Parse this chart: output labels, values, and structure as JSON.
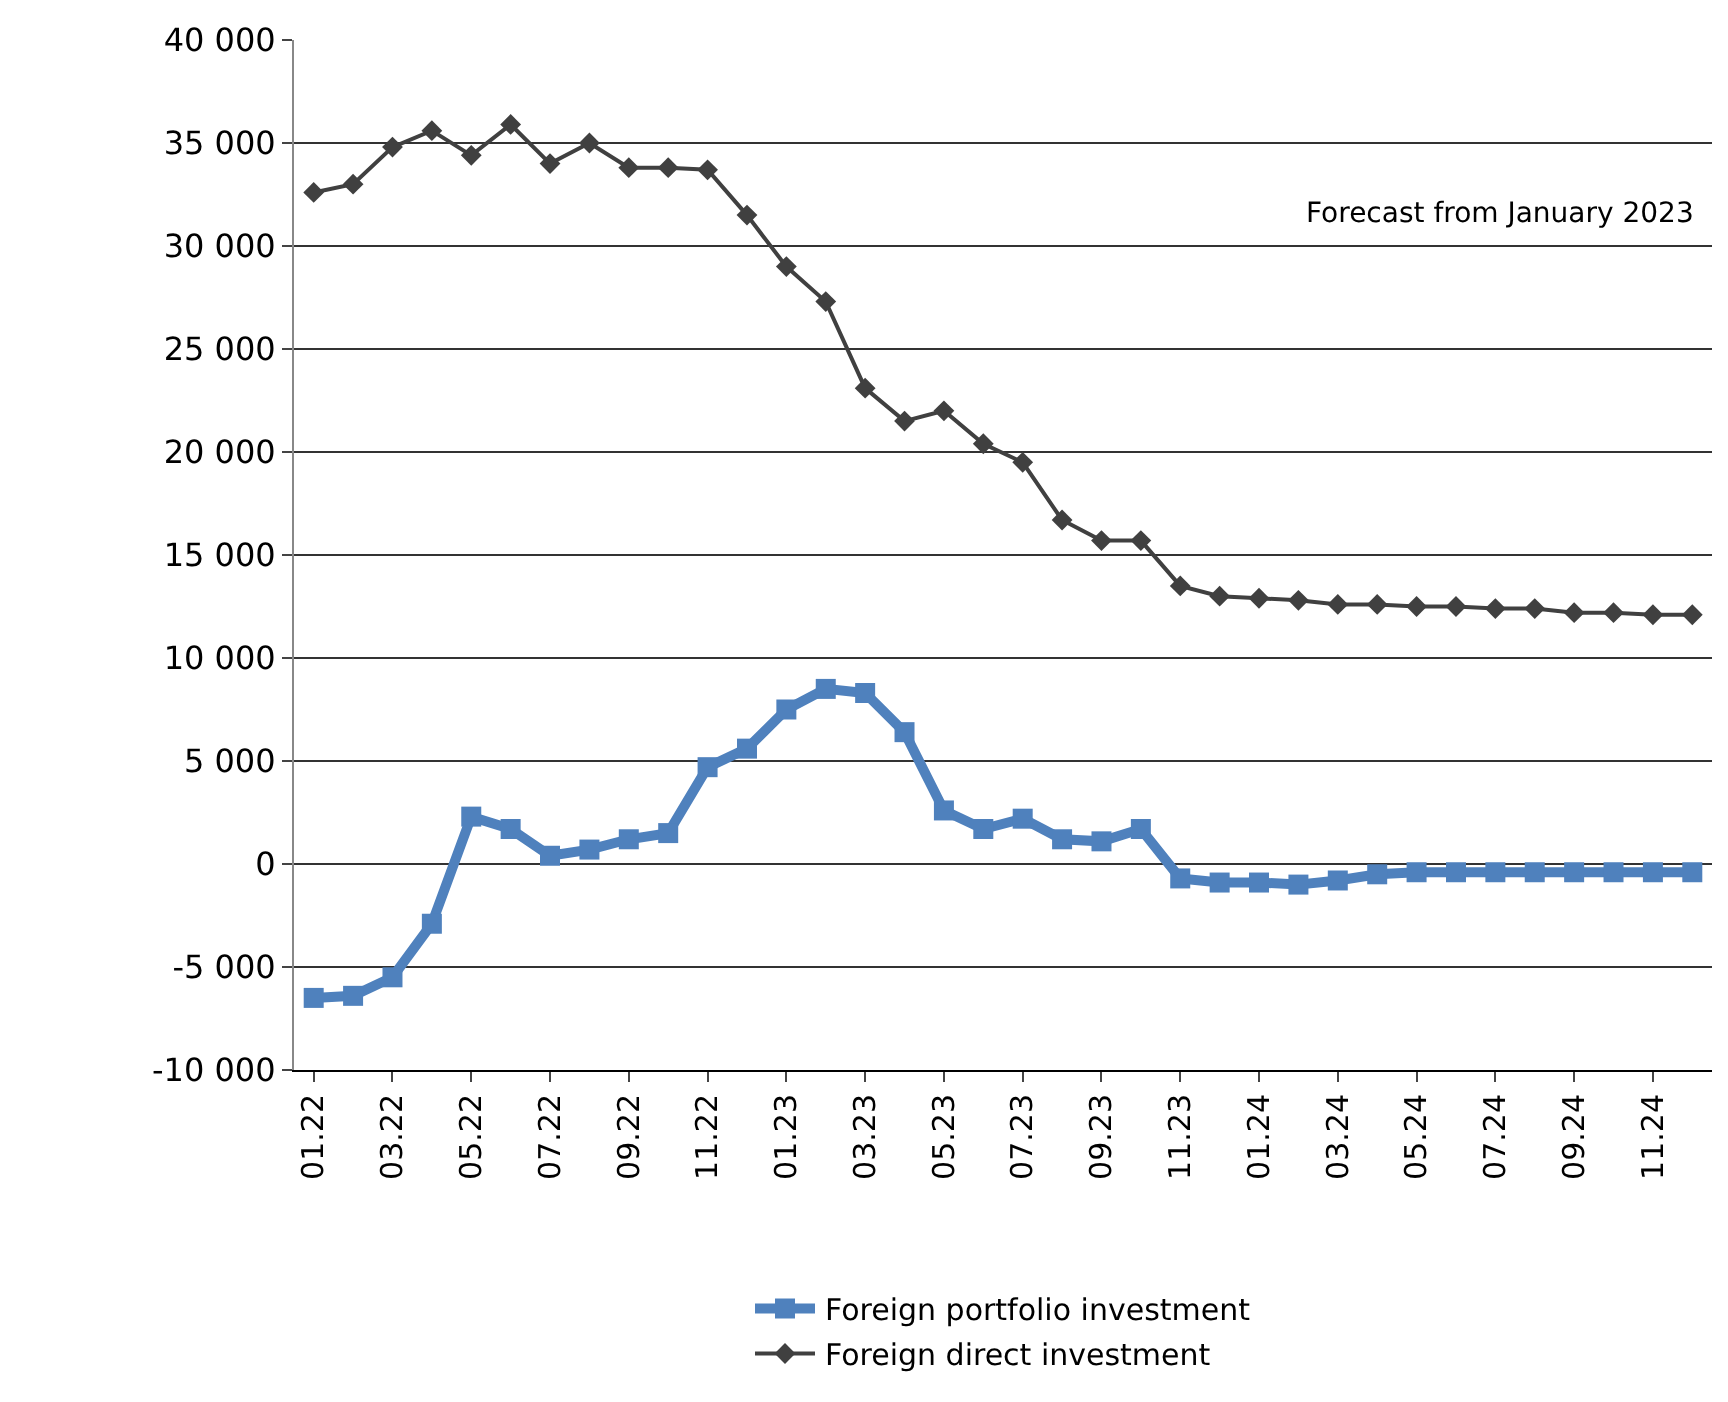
{
  "chart_data": {
    "type": "line",
    "categories": [
      "01.22",
      null,
      "03.22",
      null,
      "05.22",
      null,
      "07.22",
      null,
      "09.22",
      null,
      "11.22",
      null,
      "01.23",
      null,
      "03.23",
      null,
      "05.23",
      null,
      "07.23",
      null,
      "09.23",
      null,
      "11.23",
      null,
      "01.24",
      null,
      "03.24",
      null,
      "05.24",
      null,
      "07.24",
      null,
      "09.24",
      null,
      "11.24",
      null
    ],
    "series": [
      {
        "name": "Foreign portfolio investment",
        "color": "#4f81bd",
        "marker": "square",
        "values": [
          -6500,
          -6400,
          -5500,
          -2900,
          2300,
          1700,
          400,
          700,
          1200,
          1500,
          4700,
          5600,
          7500,
          8500,
          8300,
          6400,
          2600,
          1700,
          2200,
          1200,
          1100,
          1700,
          -700,
          -900,
          -900,
          -1000,
          -800,
          -500,
          -400,
          -400,
          -400,
          -400,
          -400,
          -400,
          -400,
          -400
        ]
      },
      {
        "name": "Foreign direct investment",
        "color": "#404040",
        "marker": "diamond",
        "values": [
          32600,
          33000,
          34800,
          35600,
          34400,
          35900,
          34000,
          35000,
          33800,
          33800,
          33700,
          31500,
          29000,
          27300,
          23100,
          21500,
          22000,
          20400,
          19500,
          16700,
          15700,
          15700,
          13500,
          13000,
          12900,
          12800,
          12600,
          12600,
          12500,
          12500,
          12400,
          12400,
          12200,
          12200,
          12100,
          12100
        ]
      }
    ],
    "ylim": [
      -10000,
      40000
    ],
    "yticks": [
      {
        "value": -10000,
        "label": "-10 000"
      },
      {
        "value": -5000,
        "label": "-5 000"
      },
      0,
      {
        "value": 5000,
        "label": "5 000"
      },
      {
        "value": 10000,
        "label": "10 000"
      },
      {
        "value": 15000,
        "label": "15 000"
      },
      {
        "value": 20000,
        "label": "20 000"
      },
      {
        "value": 25000,
        "label": "25 000"
      },
      {
        "value": 30000,
        "label": "30 000"
      },
      {
        "value": 35000,
        "label": "35 000"
      },
      {
        "value": 40000,
        "label": "40 000"
      }
    ],
    "annotations": [
      "Forecast from January 2023"
    ],
    "grid": "y",
    "legend": "bottom",
    "line_style": "solid"
  }
}
